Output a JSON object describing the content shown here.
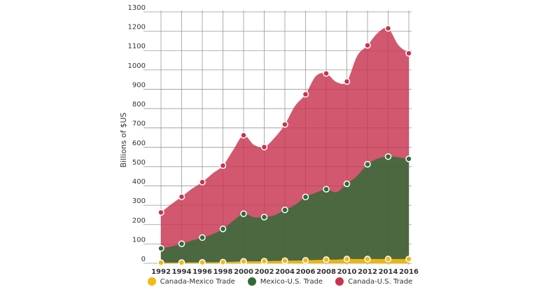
{
  "chart_data": {
    "type": "area",
    "ylabel": "Billions of $US",
    "x": [
      1992,
      1993,
      1994,
      1995,
      1996,
      1997,
      1998,
      1999,
      2000,
      2001,
      2002,
      2003,
      2004,
      2005,
      2006,
      2007,
      2008,
      2009,
      2010,
      2011,
      2012,
      2013,
      2014,
      2015,
      2016
    ],
    "xticks": [
      "1992",
      "1994",
      "1996",
      "1998",
      "2000",
      "2002",
      "2004",
      "2006",
      "2008",
      "2010",
      "2012",
      "2014",
      "2016"
    ],
    "yticks": [
      "0",
      "100",
      "200",
      "300",
      "400",
      "500",
      "600",
      "700",
      "800",
      "900",
      "1000",
      "1100",
      "1200",
      "1300"
    ],
    "ylim": [
      0,
      1300
    ],
    "stacked": true,
    "series": [
      {
        "name": "Canada-Mexico Trade",
        "color": "#f5b90f",
        "values": [
          3,
          3.5,
          4,
          4.5,
          5,
          5.5,
          6,
          8,
          10,
          10.5,
          11,
          12,
          13,
          14,
          15,
          17,
          19,
          19,
          22,
          22,
          22,
          22,
          22,
          22,
          22
        ]
      },
      {
        "name": "Mexico-U.S. Trade",
        "color": "#2e6b37",
        "values": [
          74,
          84,
          97,
          113,
          128,
          145,
          172,
          212,
          246,
          228,
          228,
          237,
          263,
          289,
          328,
          348,
          364,
          349,
          389,
          430,
          490,
          520,
          530,
          526,
          518
        ]
      },
      {
        "name": "Canada-U.S. Trade",
        "color": "#c8334f",
        "values": [
          186,
          218,
          243,
          268,
          287,
          314,
          327,
          366,
          406,
          374,
          362,
          400,
          442,
          512,
          531,
          603,
          599,
          569,
          529,
          620,
          615,
          650,
          663,
          580,
          546
        ]
      }
    ],
    "markers_at": [
      "1992",
      "1994",
      "1996",
      "1998",
      "2000",
      "2002",
      "2004",
      "2006",
      "2008",
      "2010",
      "2012",
      "2014",
      "2016"
    ],
    "grid": true,
    "legend_position": "bottom"
  }
}
